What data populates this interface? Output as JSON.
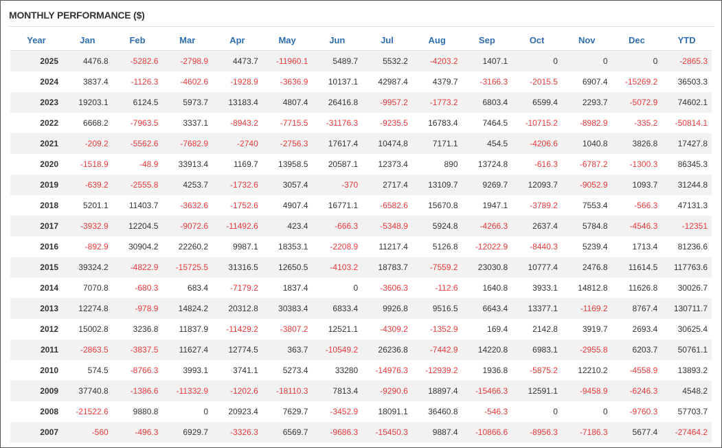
{
  "title": "MONTHLY PERFORMANCE ($)",
  "table": {
    "header": [
      "Year",
      "Jan",
      "Feb",
      "Mar",
      "Apr",
      "May",
      "Jun",
      "Jul",
      "Aug",
      "Sep",
      "Oct",
      "Nov",
      "Dec",
      "YTD"
    ],
    "rows": [
      [
        2025,
        4476.8,
        -5282.6,
        -2798.9,
        4473.7,
        -11960.1,
        5489.7,
        5532.2,
        -4203.2,
        1407.1,
        0,
        0,
        0,
        -2865.3
      ],
      [
        2024,
        3837.4,
        -1126.3,
        -4602.6,
        -1928.9,
        -3636.9,
        10137.1,
        42987.4,
        4379.7,
        -3166.3,
        -2015.5,
        6907.4,
        -15269.2,
        36503.3
      ],
      [
        2023,
        19203.1,
        6124.5,
        5973.7,
        13183.4,
        4807.4,
        26416.8,
        -9957.2,
        -1773.2,
        6803.4,
        6599.4,
        2293.7,
        -5072.9,
        74602.1
      ],
      [
        2022,
        6668.2,
        -7963.5,
        3337.1,
        -8943.2,
        -7715.5,
        -31176.3,
        -9235.5,
        16783.4,
        7464.5,
        -10715.2,
        -8982.9,
        -335.2,
        -50814.1
      ],
      [
        2021,
        -209.2,
        -5562.6,
        -7682.9,
        -2740,
        -2756.3,
        17617.4,
        10474.8,
        7171.1,
        454.5,
        -4206.6,
        1040.8,
        3826.8,
        17427.8
      ],
      [
        2020,
        -1518.9,
        -48.9,
        33913.4,
        1169.7,
        13958.5,
        20587.1,
        12373.4,
        890,
        13724.8,
        -616.3,
        -6787.2,
        -1300.3,
        86345.3
      ],
      [
        2019,
        -639.2,
        -2555.8,
        4253.7,
        -1732.6,
        3057.4,
        -370,
        2717.4,
        13109.7,
        9269.7,
        12093.7,
        -9052.9,
        1093.7,
        31244.8
      ],
      [
        2018,
        5201.1,
        11403.7,
        -3632.6,
        -1752.6,
        4907.4,
        16771.1,
        -6582.6,
        15670.8,
        1947.1,
        -3789.2,
        7553.4,
        -566.3,
        47131.3
      ],
      [
        2017,
        -3932.9,
        12204.5,
        -9072.6,
        -11492.6,
        423.4,
        -666.3,
        -5348.9,
        5924.8,
        -4266.3,
        2637.4,
        5784.8,
        -4546.3,
        -12351
      ],
      [
        2016,
        -892.9,
        30904.2,
        22260.2,
        9987.1,
        18353.1,
        -2208.9,
        11217.4,
        5126.8,
        -12022.9,
        -8440.3,
        5239.4,
        1713.4,
        81236.6
      ],
      [
        2015,
        39324.2,
        -4822.9,
        -15725.5,
        31316.5,
        12650.5,
        -4103.2,
        18783.7,
        -7559.2,
        23030.8,
        10777.4,
        2476.8,
        11614.5,
        117763.6
      ],
      [
        2014,
        7070.8,
        -680.3,
        683.4,
        -7179.2,
        1837.4,
        0,
        -3606.3,
        -112.6,
        1640.8,
        3933.1,
        14812.8,
        11626.8,
        30026.7
      ],
      [
        2013,
        12274.8,
        -978.9,
        14824.2,
        20312.8,
        30383.4,
        6833.4,
        9926.8,
        9516.5,
        6643.4,
        13377.1,
        -1169.2,
        8767.4,
        130711.7
      ],
      [
        2012,
        15002.8,
        3236.8,
        11837.9,
        -11429.2,
        -3807.2,
        12521.1,
        -4309.2,
        -1352.9,
        169.4,
        2142.8,
        3919.7,
        2693.4,
        30625.4
      ],
      [
        2011,
        -2863.5,
        -3837.5,
        11627.4,
        12774.5,
        363.7,
        -10549.2,
        26236.8,
        -7442.9,
        14220.8,
        6983.1,
        -2955.8,
        6203.7,
        50761.1
      ],
      [
        2010,
        574.5,
        -8766.3,
        3993.1,
        3741.1,
        5273.4,
        33280,
        -14976.3,
        -12939.2,
        1936.8,
        -5875.2,
        12210.2,
        -4558.9,
        13893.2
      ],
      [
        2009,
        37740.8,
        -1386.6,
        -11332.9,
        -1202.6,
        -18110.3,
        7813.4,
        -9290.6,
        18897.4,
        -15466.3,
        12591.1,
        -9458.9,
        -6246.3,
        4548.2
      ],
      [
        2008,
        -21522.6,
        9880.8,
        0,
        20923.4,
        7629.7,
        -3452.9,
        18091.1,
        36460.8,
        -546.3,
        0,
        0,
        -9760.3,
        57703.7
      ],
      [
        2007,
        -560,
        -496.3,
        6929.7,
        -3326.3,
        6569.7,
        -9686.3,
        -15450.3,
        9887.4,
        -10866.6,
        -8956.3,
        -7186.3,
        5677.4,
        -27464.2
      ]
    ]
  }
}
